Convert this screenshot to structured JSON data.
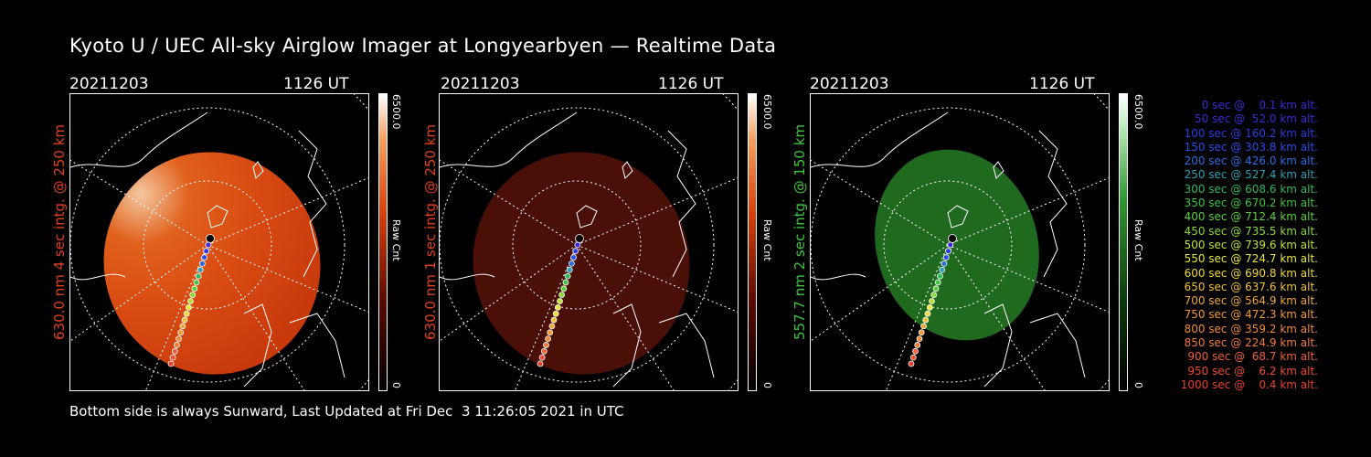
{
  "title": "Kyoto U / UEC All-sky Airglow Imager at Longyearbyen — Realtime Data",
  "footer": "Bottom side is always Sunward, Last Updated at Fri Dec  3 11:26:05 2021 in UTC",
  "panels": [
    {
      "date": "20211203",
      "time": "1126 UT",
      "ylabel": "630.0 nm 4 sec intg. @ 250 km",
      "ylabel_color": "#e0401c",
      "cbar_max": "6500.0",
      "cbar_min": "0",
      "cbar_label": "Raw Cnt",
      "colormap": "red"
    },
    {
      "date": "20211203",
      "time": "1126 UT",
      "ylabel": "630.0 nm 1 sec intg. @ 250 km",
      "ylabel_color": "#e0401c",
      "cbar_max": "6500.0",
      "cbar_min": "0",
      "cbar_label": "Raw Cnt",
      "colormap": "red"
    },
    {
      "date": "20211203",
      "time": "1126 UT",
      "ylabel": "557.7 nm 2 sec intg. @ 150 km",
      "ylabel_color": "#3fc43f",
      "cbar_max": "6500.0",
      "cbar_min": "0",
      "cbar_label": "Raw Cnt",
      "colormap": "green"
    }
  ],
  "legend": [
    {
      "text": "0 sec @    0.1 km alt.",
      "color": "#3a2bd6"
    },
    {
      "text": "50 sec @  52.0 km alt.",
      "color": "#3a2bd6"
    },
    {
      "text": "100 sec @ 160.2 km alt.",
      "color": "#2a3ee0"
    },
    {
      "text": "150 sec @ 303.8 km alt.",
      "color": "#2a4fe8"
    },
    {
      "text": "200 sec @ 426.0 km alt.",
      "color": "#2a6ee0"
    },
    {
      "text": "250 sec @ 527.4 km alt.",
      "color": "#2aa0b8"
    },
    {
      "text": "300 sec @ 608.6 km alt.",
      "color": "#2fb85a"
    },
    {
      "text": "350 sec @ 670.2 km alt.",
      "color": "#3fc43f"
    },
    {
      "text": "400 sec @ 712.4 km alt.",
      "color": "#5ad13a"
    },
    {
      "text": "450 sec @ 735.5 km alt.",
      "color": "#8ad83a"
    },
    {
      "text": "500 sec @ 739.6 km alt.",
      "color": "#c0e03a"
    },
    {
      "text": "550 sec @ 724.7 km alt.",
      "color": "#e8e83a"
    },
    {
      "text": "600 sec @ 690.8 km alt.",
      "color": "#f0d83a"
    },
    {
      "text": "650 sec @ 637.6 km alt.",
      "color": "#f0c03a"
    },
    {
      "text": "700 sec @ 564.9 km alt.",
      "color": "#f0a83a"
    },
    {
      "text": "750 sec @ 472.3 km alt.",
      "color": "#f09a3a"
    },
    {
      "text": "800 sec @ 359.2 km alt.",
      "color": "#f08a3a"
    },
    {
      "text": "850 sec @ 224.9 km alt.",
      "color": "#f07a3a"
    },
    {
      "text": "900 sec @  68.7 km alt.",
      "color": "#f0603a"
    },
    {
      "text": "950 sec @    6.2 km alt.",
      "color": "#f04a30"
    },
    {
      "text": "1000 sec @    0.4 km alt.",
      "color": "#e8402a"
    }
  ]
}
